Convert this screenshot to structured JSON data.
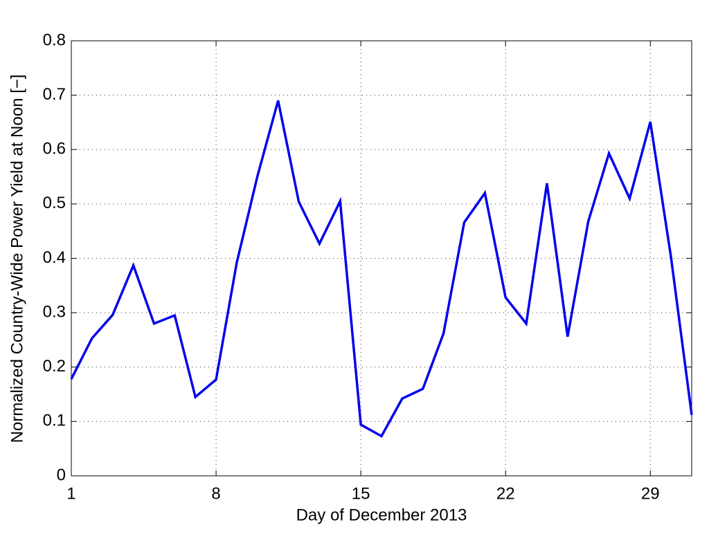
{
  "chart_data": {
    "type": "line",
    "xlabel": "Day of December 2013",
    "ylabel": "Normalized Country-Wide Power Yield at Noon [−]",
    "x": [
      1,
      2,
      3,
      4,
      5,
      6,
      7,
      8,
      9,
      10,
      11,
      12,
      13,
      14,
      15,
      16,
      17,
      18,
      19,
      20,
      21,
      22,
      23,
      24,
      25,
      26,
      27,
      28,
      29,
      30,
      31
    ],
    "series": [
      {
        "color": "#0000ee",
        "values": [
          0.178,
          0.253,
          0.296,
          0.387,
          0.28,
          0.295,
          0.145,
          0.177,
          0.392,
          0.551,
          0.69,
          0.504,
          0.427,
          0.505,
          0.094,
          0.073,
          0.142,
          0.16,
          0.262,
          0.466,
          0.52,
          0.328,
          0.28,
          0.538,
          0.256,
          0.468,
          0.593,
          0.51,
          0.651,
          0.402,
          0.112
        ]
      }
    ],
    "xlim": [
      1,
      31
    ],
    "xticks": [
      1,
      8,
      15,
      22,
      29
    ],
    "ylim": [
      0,
      0.8
    ],
    "yticks": [
      0,
      0.1,
      0.2,
      0.3,
      0.4,
      0.5,
      0.6,
      0.7,
      0.8
    ],
    "grid": true
  }
}
